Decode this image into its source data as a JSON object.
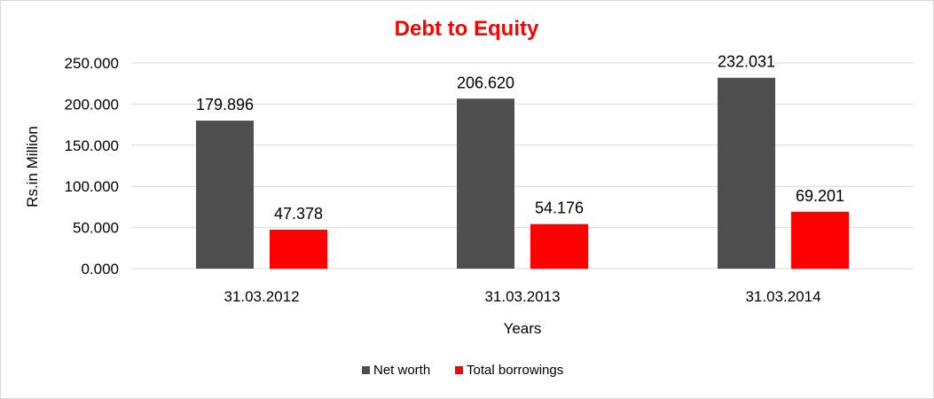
{
  "chart_data": {
    "type": "bar",
    "title": "Debt to Equity",
    "xlabel": "Years",
    "ylabel": "Rs.in Million",
    "categories": [
      "31.03.2012",
      "31.03.2013",
      "31.03.2014"
    ],
    "series": [
      {
        "name": "Net worth",
        "color": "#4f4f4f",
        "values": [
          179.896,
          206.62,
          232.031
        ],
        "labels": [
          "179.896",
          "206.620",
          "232.031"
        ]
      },
      {
        "name": "Total borrowings",
        "color": "#ff0000",
        "values": [
          47.378,
          54.176,
          69.201
        ],
        "labels": [
          "47.378",
          "54.176",
          "69.201"
        ]
      }
    ],
    "ylim": [
      0,
      250
    ],
    "yticks": [
      0,
      50,
      100,
      150,
      200,
      250
    ],
    "ytick_labels": [
      "0.000",
      "50.000",
      "100.000",
      "150.000",
      "200.000",
      "250.000"
    ],
    "grid": true,
    "legend_position": "bottom",
    "title_color": "#ff0000"
  }
}
